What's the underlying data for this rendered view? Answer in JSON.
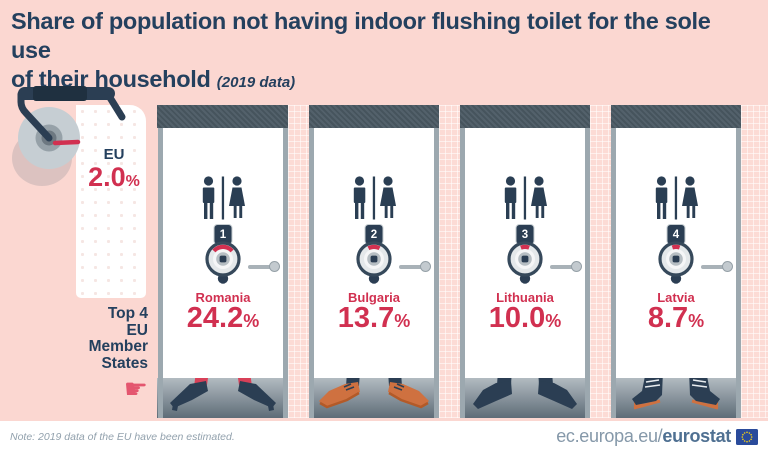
{
  "title": {
    "line1": "Share of population not having indoor flushing toilet for the sole use",
    "line2": "of their household",
    "note": "(2019 data)"
  },
  "eu": {
    "label": "EU",
    "value": "2.0",
    "percent": "%"
  },
  "aside": {
    "lines": [
      "Top 4",
      "EU",
      "Member",
      "States"
    ],
    "hand": "☛"
  },
  "stalls": [
    {
      "rank": "1",
      "country": "Romania",
      "value": "24.2",
      "percent": "%",
      "feet_icon": "red-high-heels"
    },
    {
      "rank": "2",
      "country": "Bulgaria",
      "value": "13.7",
      "percent": "%",
      "feet_icon": "orange-shoes"
    },
    {
      "rank": "3",
      "country": "Lithuania",
      "value": "10.0",
      "percent": "%",
      "feet_icon": "navy-boots"
    },
    {
      "rank": "4",
      "country": "Latvia",
      "value": "8.7",
      "percent": "%",
      "feet_icon": "laced-heel-boots"
    }
  ],
  "footer": {
    "note": "Note: 2019 data of the EU have been estimated.",
    "url_prefix": "ec.europa.eu/",
    "url_bold": "eurostat"
  },
  "colors": {
    "background": "#fbd7d1",
    "navy": "#24405e",
    "red": "#d13050",
    "hand_red": "#e4566f",
    "orange": "#cf7140",
    "band": "#4a5963",
    "flag_blue": "#2a4b9b",
    "flag_stars": "#f7d114"
  },
  "chart_data": {
    "type": "bar",
    "title": "Share of population not having indoor flushing toilet for the sole use of their household (2019 data)",
    "categories": [
      "EU",
      "Romania",
      "Bulgaria",
      "Lithuania",
      "Latvia"
    ],
    "values": [
      2.0,
      24.2,
      13.7,
      10.0,
      8.7
    ],
    "unit": "%",
    "ylim": [
      0,
      25
    ],
    "annotations": [
      "Top 4 EU Member States"
    ],
    "note": "Note: 2019 data of the EU have been estimated."
  }
}
